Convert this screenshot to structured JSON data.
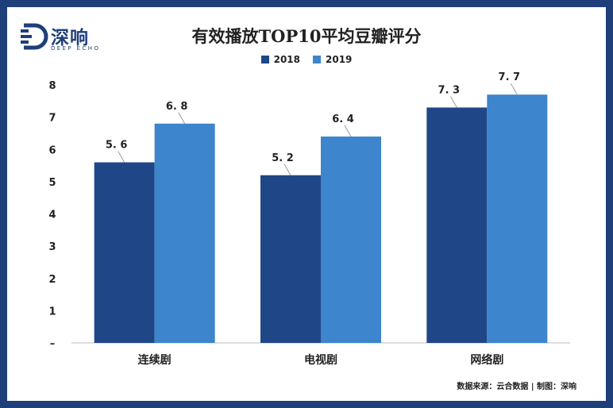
{
  "brand": {
    "name": "深响",
    "english": "DEEP ECHO",
    "color": "#1f3f7a"
  },
  "source_note": "数据来源：云合数据 | 制图：深响",
  "chart_data": {
    "type": "bar",
    "title": "有效播放TOP10平均豆瓣评分",
    "categories": [
      "连续剧",
      "电视剧",
      "网络剧"
    ],
    "series": [
      {
        "name": "2018",
        "values": [
          5.6,
          5.2,
          7.3
        ],
        "color": "#1f4788"
      },
      {
        "name": "2019",
        "values": [
          6.8,
          6.4,
          7.7
        ],
        "color": "#3d85cc"
      }
    ],
    "yticks": [
      "–",
      "1",
      "2",
      "3",
      "4",
      "5",
      "6",
      "7",
      "8"
    ],
    "ylim": [
      0,
      8
    ],
    "value_labels": [
      [
        "5. 6",
        "5. 2",
        "7. 3"
      ],
      [
        "6. 8",
        "6. 4",
        "7. 7"
      ]
    ],
    "grid": false,
    "legend_position": "top-center"
  }
}
